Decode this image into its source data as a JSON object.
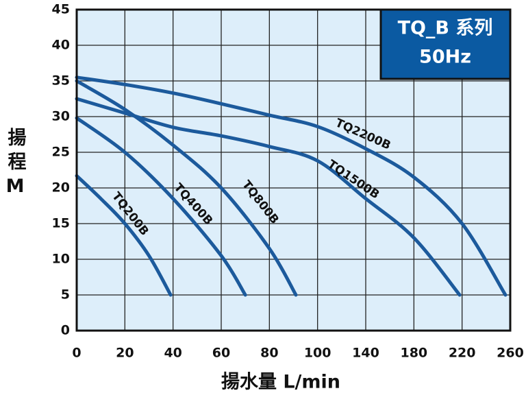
{
  "chart_data": {
    "type": "line",
    "title": "TQ_B 系列",
    "subtitle": "50Hz",
    "xlabel": "揚水量 L/min",
    "ylabel": "揚程M",
    "xlim": [
      0,
      260
    ],
    "xticks": [
      0,
      20,
      40,
      60,
      80,
      100,
      140,
      180,
      220,
      260
    ],
    "ylim": [
      0,
      45
    ],
    "yticks": [
      0,
      5,
      10,
      15,
      20,
      25,
      30,
      35,
      40,
      45
    ],
    "grid": true,
    "background": "#ddeefa",
    "series": [
      {
        "name": "TQ200B",
        "color": "#1c5a9c",
        "x": [
          0,
          10,
          20,
          30,
          39
        ],
        "values": [
          21.7,
          18.5,
          15,
          10.5,
          5
        ]
      },
      {
        "name": "TQ400B",
        "color": "#1c5a9c",
        "x": [
          0,
          20,
          40,
          60,
          70
        ],
        "values": [
          29.8,
          25,
          18.5,
          10.5,
          5
        ]
      },
      {
        "name": "TQ800B",
        "color": "#1c5a9c",
        "x": [
          0,
          20,
          40,
          60,
          80,
          91
        ],
        "values": [
          35,
          31,
          26,
          20,
          11.5,
          5
        ]
      },
      {
        "name": "TQ1500B",
        "color": "#1c5a9c",
        "x": [
          0,
          20,
          40,
          60,
          80,
          100,
          140,
          180,
          218
        ],
        "values": [
          32.5,
          30.5,
          28.5,
          27.3,
          25.8,
          23.8,
          18.5,
          13,
          5
        ]
      },
      {
        "name": "TQ2200B",
        "color": "#1c5a9c",
        "x": [
          0,
          20,
          40,
          60,
          80,
          100,
          140,
          180,
          220,
          256
        ],
        "values": [
          35.5,
          34.5,
          33.3,
          31.8,
          30.2,
          28.6,
          25.5,
          21.5,
          15,
          5
        ]
      }
    ]
  }
}
